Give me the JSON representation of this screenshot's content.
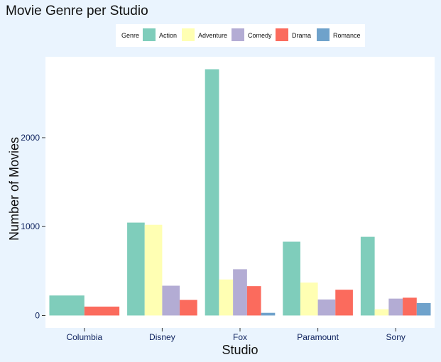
{
  "chart_data": {
    "type": "bar",
    "title": "Movie Genre per Studio",
    "xlabel": "Studio",
    "ylabel": "Number of Movies",
    "categories": [
      "Columbia",
      "Disney",
      "Fox",
      "Paramount",
      "Sony"
    ],
    "series": [
      {
        "name": "Action",
        "color": "#7fcdbb",
        "values": [
          225,
          1045,
          2770,
          830,
          885
        ]
      },
      {
        "name": "Adventure",
        "color": "#ffffb3",
        "values": [
          null,
          1020,
          405,
          370,
          70
        ]
      },
      {
        "name": "Comedy",
        "color": "#b3acd4",
        "values": [
          null,
          335,
          520,
          180,
          190
        ]
      },
      {
        "name": "Drama",
        "color": "#fb6b5d",
        "values": [
          100,
          175,
          330,
          290,
          200
        ]
      },
      {
        "name": "Romance",
        "color": "#6fa2cb",
        "values": [
          null,
          null,
          30,
          null,
          140
        ]
      }
    ],
    "yticks": [
      0,
      1000,
      2000
    ],
    "ylim": [
      -140,
      2910
    ],
    "grid": false,
    "legend": {
      "title": "Genre",
      "position": "top"
    }
  }
}
